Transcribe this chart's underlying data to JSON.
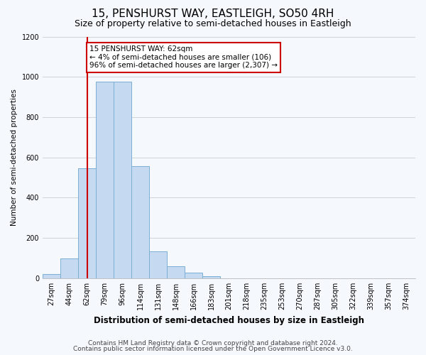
{
  "title1": "15, PENSHURST WAY, EASTLEIGH, SO50 4RH",
  "title2": "Size of property relative to semi-detached houses in Eastleigh",
  "xlabel": "Distribution of semi-detached houses by size in Eastleigh",
  "ylabel": "Number of semi-detached properties",
  "categories": [
    "27sqm",
    "44sqm",
    "62sqm",
    "79sqm",
    "96sqm",
    "114sqm",
    "131sqm",
    "148sqm",
    "166sqm",
    "183sqm",
    "201sqm",
    "218sqm",
    "235sqm",
    "253sqm",
    "270sqm",
    "287sqm",
    "305sqm",
    "322sqm",
    "339sqm",
    "357sqm",
    "374sqm"
  ],
  "bar_values": [
    20,
    100,
    545,
    975,
    975,
    555,
    135,
    60,
    28,
    10,
    0,
    0,
    0,
    0,
    0,
    0,
    0,
    0,
    0,
    0,
    0
  ],
  "bar_color": "#c5d9f1",
  "bar_edge_color": "#7bafd4",
  "vline_x": 2,
  "vline_color": "#cc0000",
  "annotation_text": "15 PENSHURST WAY: 62sqm\n← 4% of semi-detached houses are smaller (106)\n96% of semi-detached houses are larger (2,307) →",
  "annotation_box_color": "#ffffff",
  "annotation_box_edge_color": "#cc0000",
  "ylim": [
    0,
    1200
  ],
  "yticks": [
    0,
    200,
    400,
    600,
    800,
    1000,
    1200
  ],
  "footer1": "Contains HM Land Registry data © Crown copyright and database right 2024.",
  "footer2": "Contains public sector information licensed under the Open Government Licence v3.0.",
  "bg_color": "#f5f8fd",
  "plot_bg_color": "#f5f8fd",
  "title1_fontsize": 11,
  "title2_fontsize": 9,
  "xlabel_fontsize": 8.5,
  "ylabel_fontsize": 7.5,
  "footer_fontsize": 6.5,
  "tick_fontsize": 7,
  "annot_fontsize": 7.5
}
